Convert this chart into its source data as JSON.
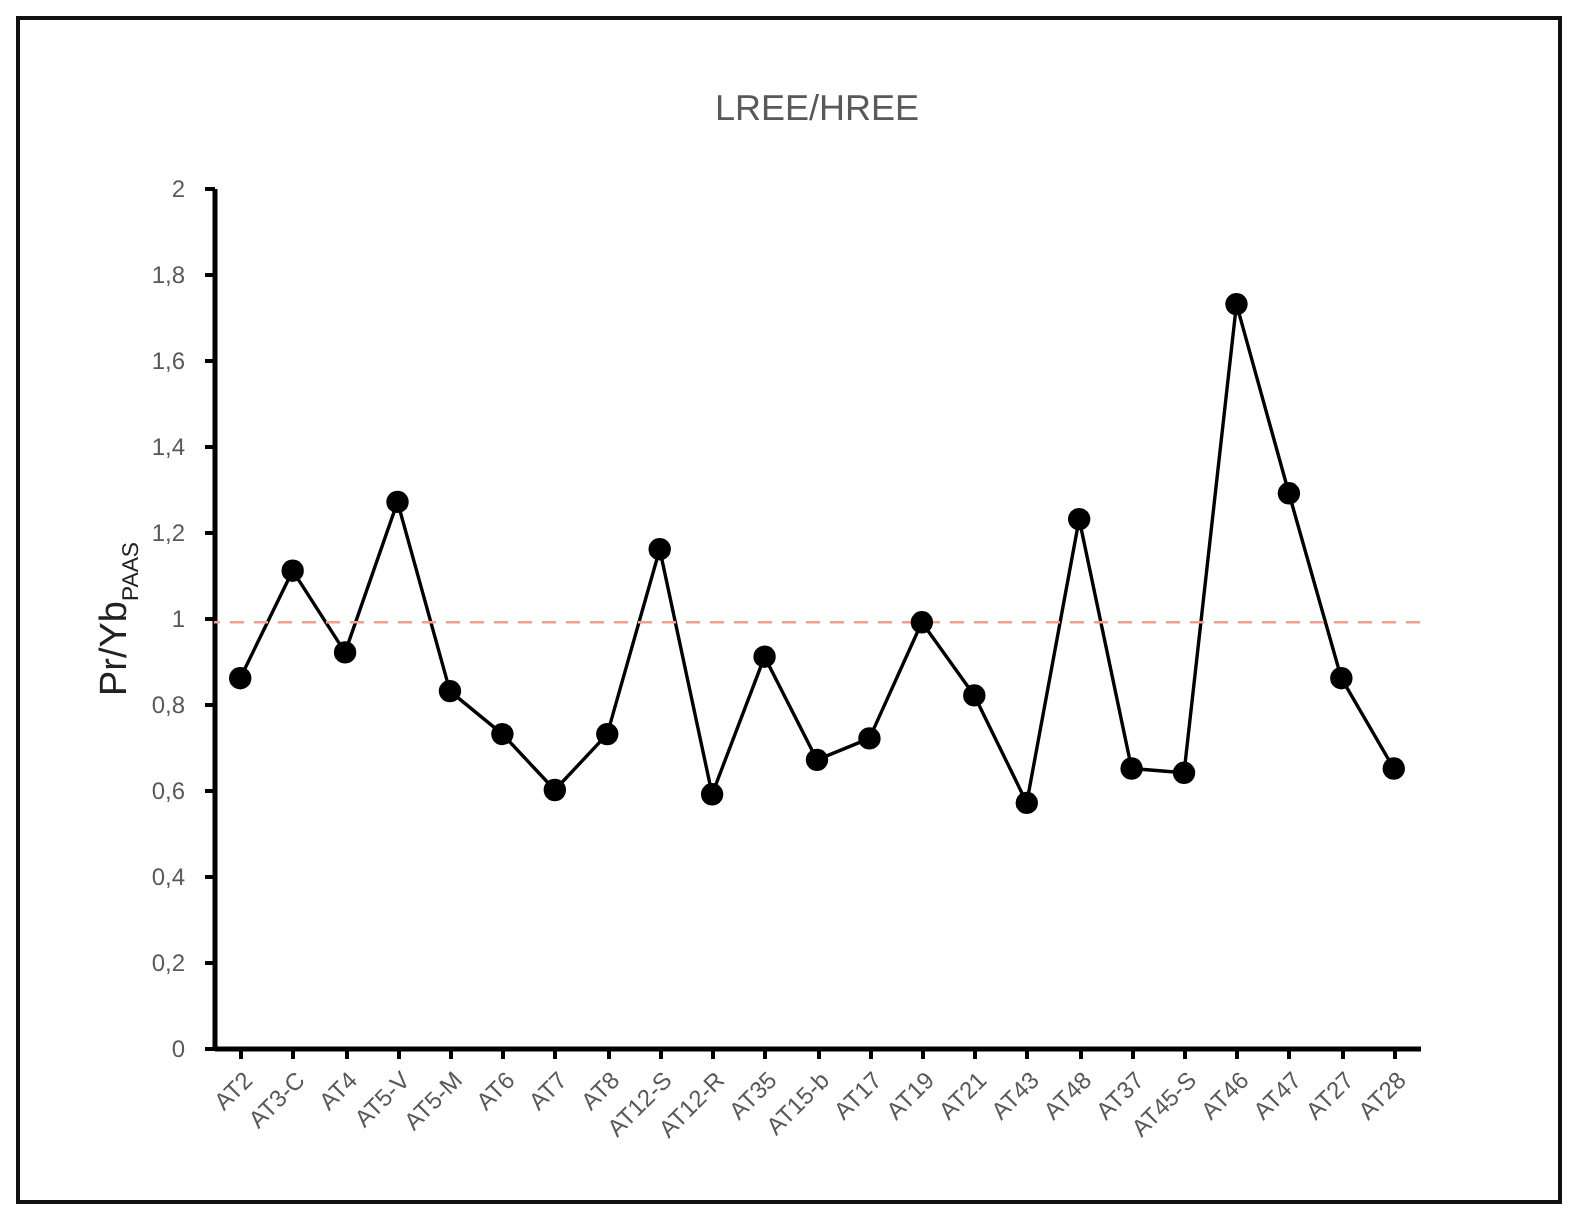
{
  "chart_data": {
    "type": "line",
    "title": "LREE/HREE",
    "ylabel": "Pr/Yb$_{PAAS}$",
    "categories": [
      "AT2",
      "AT3-C",
      "AT4",
      "AT5-V",
      "AT5-M",
      "AT6",
      "AT7",
      "AT8",
      "AT12-S",
      "AT12-R",
      "AT35",
      "AT15-b",
      "AT17",
      "AT19",
      "AT21",
      "AT43",
      "AT48",
      "AT37",
      "AT45-S",
      "AT46",
      "AT47",
      "AT27",
      "AT28"
    ],
    "series": [
      {
        "color": "#000000",
        "values": [
          0.86,
          1.11,
          0.92,
          1.27,
          0.83,
          0.73,
          0.6,
          0.73,
          1.16,
          0.59,
          0.91,
          0.67,
          0.72,
          0.99,
          0.82,
          0.57,
          1.23,
          0.65,
          0.64,
          1.73,
          1.29,
          0.86,
          0.65
        ]
      }
    ],
    "ylim": [
      0,
      2
    ],
    "yticks": [
      0,
      {
        "value": 0.2,
        "label": "0,2"
      },
      {
        "value": 0.4,
        "label": "0,4"
      },
      {
        "value": 0.6,
        "label": "0,6"
      },
      {
        "value": 0.8,
        "label": "0,8"
      },
      1,
      {
        "value": 1.2,
        "label": "1,2"
      },
      {
        "value": 1.4,
        "label": "1,4"
      },
      {
        "value": 1.6,
        "label": "1,6"
      },
      {
        "value": 1.8,
        "label": "1,8"
      },
      2
    ],
    "ref_lines": [
      {
        "axis": "y",
        "value": 0.99,
        "color": "#f4a08c",
        "line_style": "dashed"
      }
    ],
    "marker": "circle",
    "line_style": "solid"
  }
}
